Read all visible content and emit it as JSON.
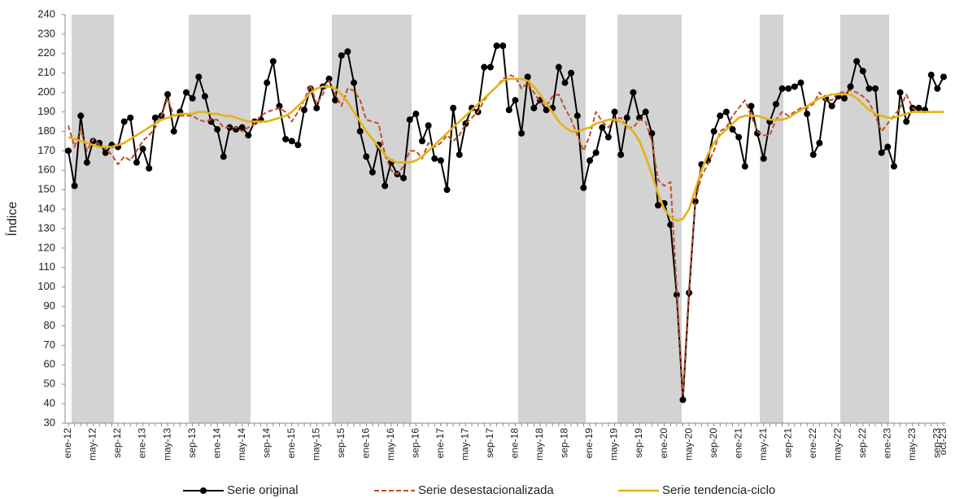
{
  "chart_data": {
    "type": "line",
    "y_label": "Índice",
    "ylim": [
      30,
      240
    ],
    "yticks": [
      30,
      40,
      50,
      60,
      70,
      80,
      90,
      100,
      110,
      120,
      130,
      140,
      150,
      160,
      170,
      180,
      190,
      200,
      210,
      220,
      230,
      240
    ],
    "legend": "bottom",
    "categories": [
      "ene-12",
      null,
      null,
      null,
      "may-12",
      null,
      null,
      null,
      "sep-12",
      null,
      null,
      null,
      "ene-13",
      null,
      null,
      null,
      "may-13",
      null,
      null,
      null,
      "sep-13",
      null,
      null,
      null,
      "ene-14",
      null,
      null,
      null,
      "may-14",
      null,
      null,
      null,
      "sep-14",
      null,
      null,
      null,
      "ene-15",
      null,
      null,
      null,
      "may-15",
      null,
      null,
      null,
      "sep-15",
      null,
      null,
      null,
      "ene-16",
      null,
      null,
      null,
      "may-16",
      null,
      null,
      null,
      "sep-16",
      null,
      null,
      null,
      "ene-17",
      null,
      null,
      null,
      "may-17",
      null,
      null,
      null,
      "sep-17",
      null,
      null,
      null,
      "ene-18",
      null,
      null,
      null,
      "may-18",
      null,
      null,
      null,
      "sep-18",
      null,
      null,
      null,
      "ene-19",
      null,
      null,
      null,
      "may-19",
      null,
      null,
      null,
      "sep-19",
      null,
      null,
      null,
      "ene-20",
      null,
      null,
      null,
      "may-20",
      null,
      null,
      null,
      "sep-20",
      null,
      null,
      null,
      "ene-21",
      null,
      null,
      null,
      "may-21",
      null,
      null,
      null,
      "sep-21",
      null,
      null,
      null,
      "ene-22",
      null,
      null,
      null,
      "may-22",
      null,
      null,
      null,
      "sep-22",
      null,
      null,
      null,
      "ene-23",
      null,
      null,
      null,
      "may-23",
      null,
      null,
      null,
      "sep-23",
      "oct-23"
    ],
    "series": [
      {
        "name": "Serie original",
        "color": "#000000",
        "style": "solid-markers",
        "values": [
          170,
          152,
          188,
          164,
          175,
          174,
          169,
          173,
          172,
          185,
          187,
          164,
          171,
          161,
          187,
          188,
          199,
          180,
          190,
          200,
          197,
          208,
          198,
          185,
          181,
          167,
          182,
          181,
          182,
          178,
          185,
          186,
          205,
          216,
          193,
          176,
          175,
          173,
          191,
          202,
          192,
          203,
          207,
          196,
          219,
          221,
          205,
          180,
          167,
          159,
          173,
          152,
          164,
          158,
          156,
          186,
          189,
          175,
          183,
          166,
          165,
          150,
          192,
          168,
          184,
          192,
          190,
          213,
          213,
          224,
          224,
          191,
          196,
          179,
          208,
          192,
          196,
          191,
          192,
          213,
          205,
          210,
          188,
          151,
          165,
          169,
          182,
          177,
          190,
          168,
          187,
          200,
          187,
          190,
          179,
          142,
          143,
          132,
          96,
          42,
          97,
          144,
          163,
          165,
          180,
          188,
          190,
          181,
          177,
          162,
          193,
          179,
          166,
          185,
          194,
          202,
          202,
          203,
          205,
          189,
          168,
          174,
          197,
          193,
          198,
          197,
          203,
          216,
          211,
          202,
          202,
          169,
          172,
          162,
          200,
          185,
          192,
          192,
          191,
          209,
          202,
          208
        ]
      },
      {
        "name": "Serie desestacionalizada",
        "color": "#c0502a",
        "style": "dashed",
        "values": [
          183,
          172,
          181,
          170,
          176,
          173,
          171,
          168,
          163,
          167,
          165,
          170,
          175,
          178,
          182,
          188,
          197,
          188,
          188,
          188,
          188,
          186,
          185,
          186,
          186,
          182,
          182,
          182,
          180,
          182,
          184,
          188,
          190,
          191,
          192,
          190,
          185,
          190,
          196,
          204,
          194,
          199,
          206,
          199,
          193,
          202,
          201,
          196,
          186,
          185,
          184,
          168,
          160,
          158,
          162,
          170,
          170,
          166,
          174,
          172,
          174,
          178,
          175,
          178,
          184,
          187,
          190,
          196,
          200,
          203,
          207,
          209,
          208,
          202,
          205,
          200,
          195,
          193,
          198,
          199,
          192,
          186,
          178,
          170,
          178,
          190,
          185,
          182,
          186,
          187,
          182,
          182,
          186,
          185,
          175,
          155,
          152,
          154,
          100,
          45,
          100,
          145,
          157,
          163,
          170,
          180,
          182,
          188,
          192,
          196,
          188,
          180,
          178,
          178,
          186,
          190,
          188,
          190,
          192,
          192,
          194,
          200,
          196,
          196,
          200,
          200,
          201,
          200,
          198,
          195,
          188,
          180,
          184,
          188,
          192,
          199,
          192,
          190,
          190,
          190,
          190,
          190
        ]
      },
      {
        "name": "Serie tendencia-ciclo",
        "color": "#e5b217",
        "style": "solid",
        "values": [
          177,
          176,
          175,
          174,
          173,
          172,
          172,
          172,
          173,
          174,
          176,
          178,
          180,
          182,
          184,
          186,
          187,
          188,
          189,
          189,
          189,
          190,
          190,
          189,
          189,
          188,
          188,
          187,
          186,
          185,
          185,
          185,
          185,
          186,
          187,
          188,
          190,
          193,
          196,
          200,
          202,
          203,
          203,
          202,
          199,
          195,
          190,
          185,
          180,
          176,
          172,
          168,
          165,
          164,
          164,
          164,
          165,
          167,
          170,
          173,
          176,
          179,
          182,
          185,
          188,
          191,
          194,
          197,
          200,
          203,
          206,
          207,
          207,
          207,
          206,
          203,
          199,
          194,
          190,
          185,
          182,
          180,
          180,
          181,
          182,
          184,
          185,
          186,
          186,
          185,
          183,
          180,
          175,
          167,
          158,
          148,
          140,
          136,
          134,
          135,
          140,
          150,
          160,
          168,
          174,
          178,
          181,
          184,
          187,
          188,
          188,
          188,
          187,
          186,
          186,
          186,
          187,
          189,
          191,
          193,
          195,
          197,
          198,
          199,
          199,
          199,
          199,
          197,
          194,
          191,
          189,
          188,
          187,
          187,
          188,
          189,
          190,
          190,
          190,
          190,
          190,
          190
        ]
      }
    ]
  }
}
